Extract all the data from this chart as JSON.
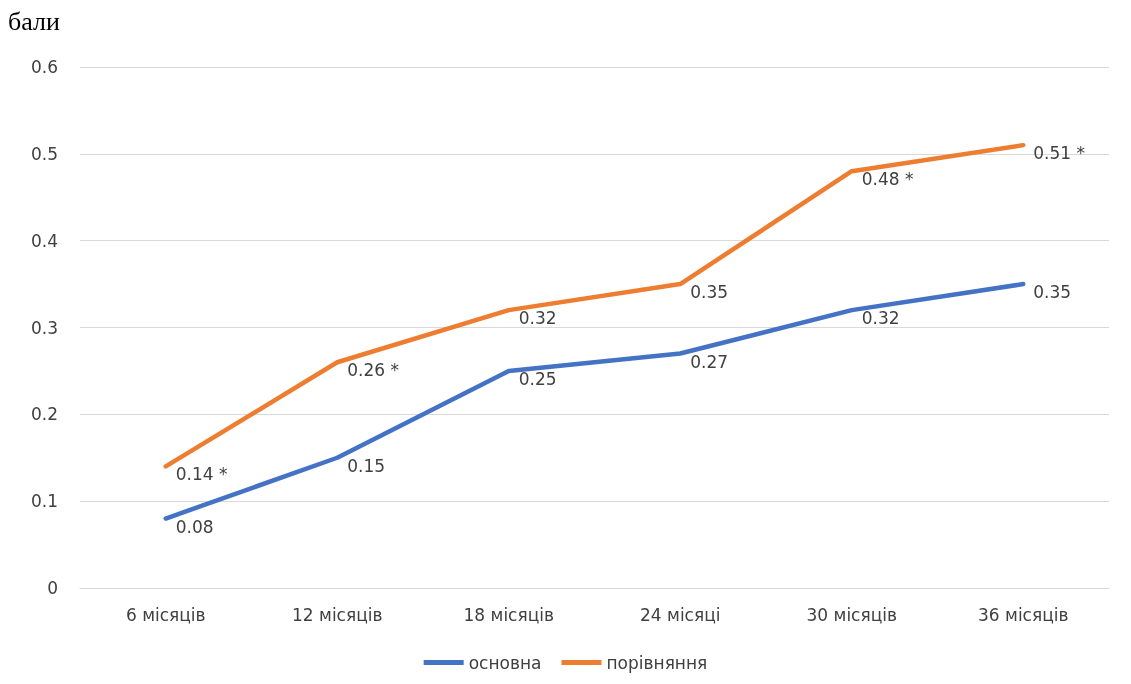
{
  "chart_data": {
    "type": "line",
    "ylabel": "бали",
    "categories": [
      "6 місяців",
      "12 місяців",
      "18 місяців",
      "24 місяці",
      "30 місяців",
      "36 місяців"
    ],
    "series": [
      {
        "name": "основна",
        "color": "#4472c4",
        "values": [
          0.08,
          0.15,
          0.25,
          0.27,
          0.32,
          0.35
        ],
        "value_labels": [
          "0.08",
          "0.15",
          "0.25",
          "0.27",
          "0.32",
          "0.35"
        ]
      },
      {
        "name": "порівняння",
        "color": "#ed7d31",
        "values": [
          0.14,
          0.26,
          0.32,
          0.35,
          0.48,
          0.51
        ],
        "value_labels": [
          "0.14 *",
          "0.26 *",
          "0.32",
          "0.35",
          "0.48 *",
          "0.51 *"
        ]
      }
    ],
    "ylim": [
      0,
      0.6
    ],
    "yticks": [
      0,
      0.1,
      0.2,
      0.3,
      0.4,
      0.5,
      0.6
    ],
    "grid": "y",
    "legend": "bottom",
    "marker": "none",
    "line_style": "solid"
  }
}
